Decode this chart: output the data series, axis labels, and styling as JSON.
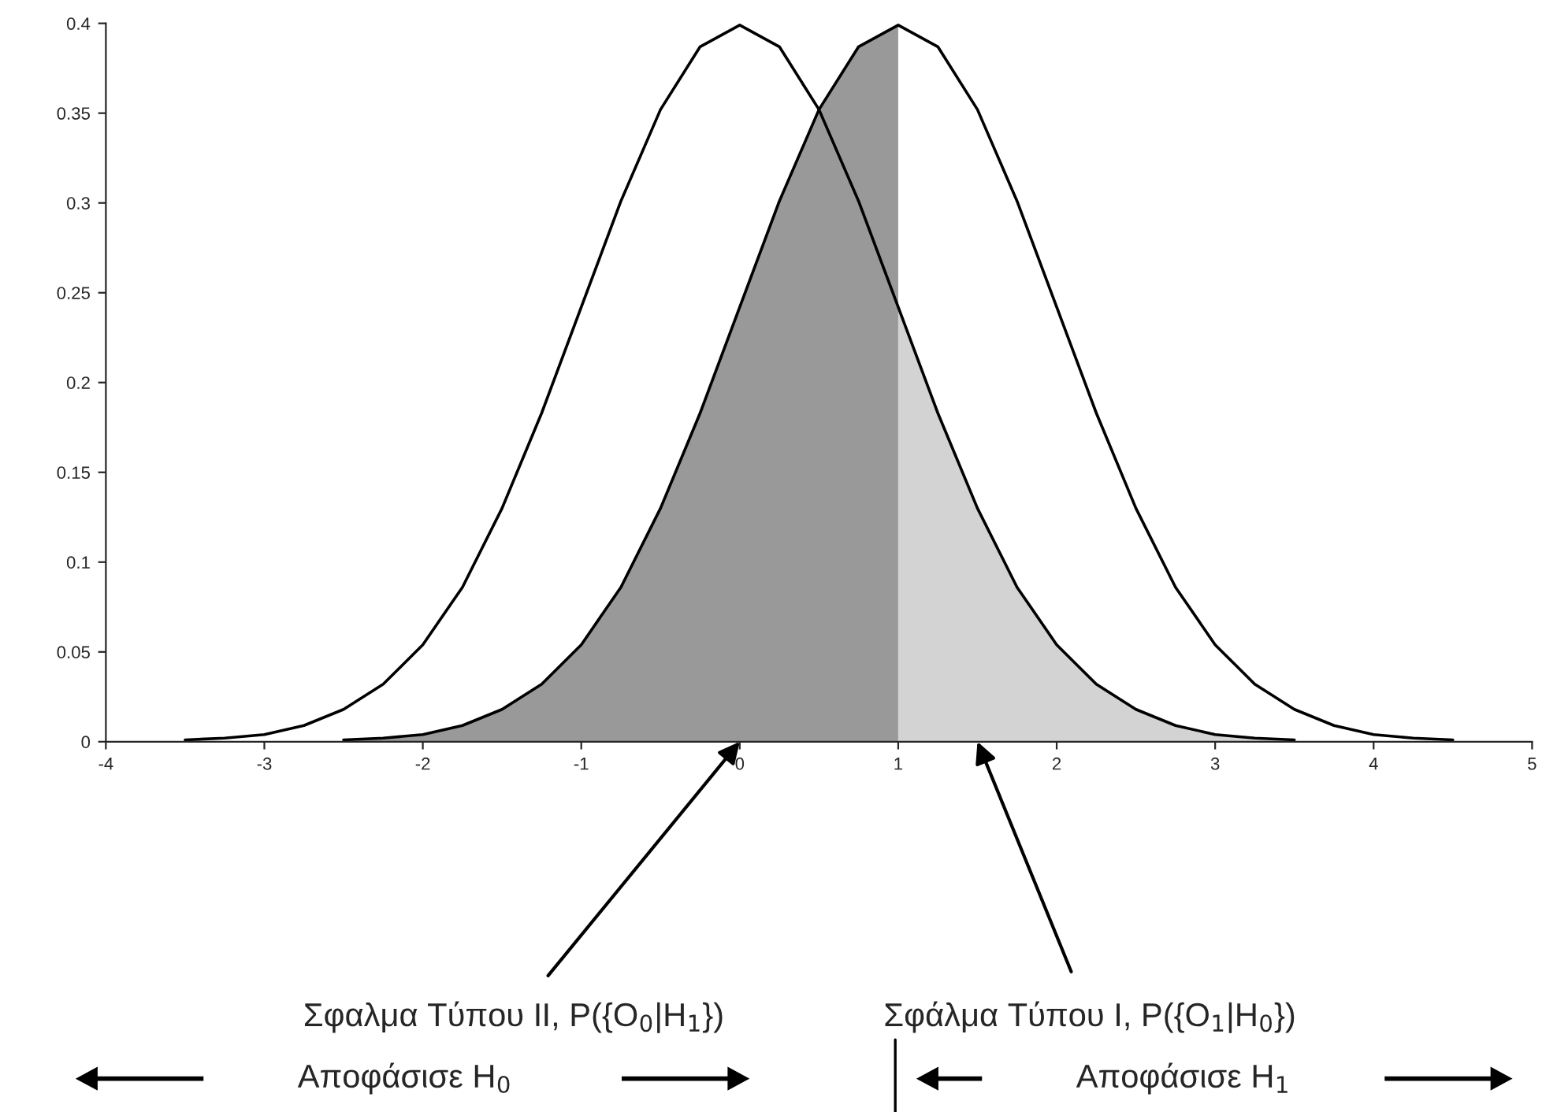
{
  "chart_data": {
    "type": "line",
    "series": [
      {
        "type": "area",
        "color": "#999999",
        "x": [
          -2.5,
          -2.25,
          -2.0,
          -1.75,
          -1.5,
          -1.25,
          -1.0,
          -0.75,
          -0.5,
          -0.25,
          0.0,
          0.25,
          0.5,
          0.75,
          1.0
        ],
        "values": [
          0.001,
          0.002,
          0.004,
          0.009,
          0.018,
          0.032,
          0.054,
          0.086,
          0.13,
          0.183,
          0.242,
          0.301,
          0.352,
          0.387,
          0.399
        ]
      },
      {
        "type": "area",
        "color": "#d3d3d3",
        "x": [
          1.0,
          1.25,
          1.5,
          1.75,
          2.0,
          2.25,
          2.5,
          2.75,
          3.0,
          3.25,
          3.5
        ],
        "values": [
          0.242,
          0.183,
          0.13,
          0.086,
          0.054,
          0.032,
          0.018,
          0.009,
          0.004,
          0.002,
          0.001
        ]
      },
      {
        "color": "#000000",
        "x": [
          -3.5,
          -3.25,
          -3.0,
          -2.75,
          -2.5,
          -2.25,
          -2.0,
          -1.75,
          -1.5,
          -1.25,
          -1.0,
          -0.75,
          -0.5,
          -0.25,
          0.0,
          0.25,
          0.5,
          0.75,
          1.0,
          1.25,
          1.5,
          1.75,
          2.0,
          2.25,
          2.5,
          2.75,
          3.0,
          3.25,
          3.5
        ],
        "values": [
          0.001,
          0.002,
          0.004,
          0.009,
          0.018,
          0.032,
          0.054,
          0.086,
          0.13,
          0.183,
          0.242,
          0.301,
          0.352,
          0.387,
          0.399,
          0.387,
          0.352,
          0.301,
          0.242,
          0.183,
          0.13,
          0.086,
          0.054,
          0.032,
          0.018,
          0.009,
          0.004,
          0.002,
          0.001
        ]
      },
      {
        "color": "#000000",
        "x": [
          -2.5,
          -2.25,
          -2.0,
          -1.75,
          -1.5,
          -1.25,
          -1.0,
          -0.75,
          -0.5,
          -0.25,
          0.0,
          0.25,
          0.5,
          0.75,
          1.0,
          1.25,
          1.5,
          1.75,
          2.0,
          2.25,
          2.5,
          2.75,
          3.0,
          3.25,
          3.5,
          3.75,
          4.0,
          4.25,
          4.5
        ],
        "values": [
          0.001,
          0.002,
          0.004,
          0.009,
          0.018,
          0.032,
          0.054,
          0.086,
          0.13,
          0.183,
          0.242,
          0.301,
          0.352,
          0.387,
          0.399,
          0.387,
          0.352,
          0.301,
          0.242,
          0.183,
          0.13,
          0.086,
          0.054,
          0.032,
          0.018,
          0.009,
          0.004,
          0.002,
          0.001
        ]
      }
    ],
    "xlim": [
      -4,
      5
    ],
    "xticks": [
      -4,
      -3,
      -2,
      -1,
      0,
      1,
      2,
      3,
      4,
      5
    ],
    "ylim": [
      0,
      0.4
    ],
    "yticks": [
      0,
      0.05,
      0.1,
      0.15,
      0.2,
      0.25,
      0.3,
      0.35,
      0.4
    ],
    "grid": false,
    "legend": false,
    "annotations": [
      {
        "text": "Σφαλμα Τύπου II, P({O$_{0}$|H$_{1}$})",
        "x": 0.0,
        "y": 0
      },
      {
        "text": "Σφάλμα Τύπου I, P({O$_{1}$|H$_{0}$})",
        "x": 1.5,
        "y": 0
      },
      "Αποφάσισε H$_{0}$",
      "Αποφάσισε H$_{1}$"
    ]
  }
}
